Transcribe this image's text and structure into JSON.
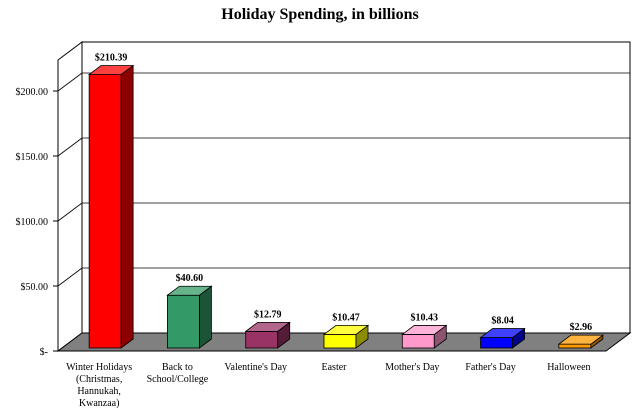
{
  "chart_data": {
    "type": "bar",
    "title": "Holiday Spending, in billions",
    "xlabel": "",
    "ylabel": "",
    "ylim": [
      0,
      250
    ],
    "yticks": [
      0,
      50,
      100,
      150,
      200
    ],
    "ytick_labels": [
      "$-",
      "$50.00",
      "$100.00",
      "$150.00",
      "$200.00"
    ],
    "grid": true,
    "legend": "none",
    "categories": [
      "Winter Holidays (Christmas, Hannukah, Kwanzaa)",
      "Back to School/College",
      "Valentine's Day",
      "Easter",
      "Mother's Day",
      "Father's Day",
      "Halloween"
    ],
    "category_lines": [
      [
        "Winter Holidays",
        "(Christmas,",
        "Hannukah,",
        "Kwanzaa)"
      ],
      [
        "Back to",
        "School/College"
      ],
      [
        "Valentine's Day"
      ],
      [
        "Easter"
      ],
      [
        "Mother's Day"
      ],
      [
        "Father's Day"
      ],
      [
        "Halloween"
      ]
    ],
    "values": [
      210.39,
      40.6,
      12.79,
      10.47,
      10.43,
      8.04,
      2.96
    ],
    "value_labels": [
      "$210.39",
      "$40.60",
      "$12.79",
      "$10.47",
      "$10.43",
      "$8.04",
      "$2.96"
    ],
    "colors": [
      "#ff0000",
      "#339966",
      "#993366",
      "#ffff00",
      "#ff99cc",
      "#0000ff",
      "#ff9900"
    ]
  }
}
